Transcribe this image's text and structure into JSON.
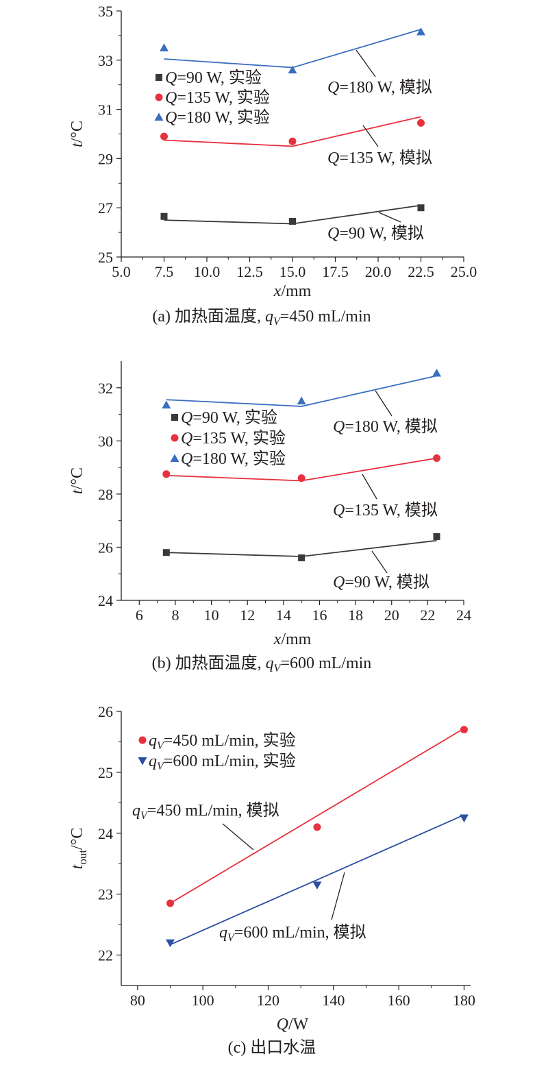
{
  "chart_data": [
    {
      "type": "line",
      "caption_parts": {
        "prefix": "(a) 加热面温度, ",
        "var": "q",
        "sub": "V",
        "suffix": "=450 mL/min"
      },
      "xlabel_parts": {
        "var": "x",
        "rest": "/mm"
      },
      "ylabel_parts": {
        "var": "t",
        "rest": "/°C"
      },
      "xlim": [
        5,
        25
      ],
      "ylim": [
        25,
        35
      ],
      "xticks": [
        5,
        7.5,
        10,
        12.5,
        15,
        17.5,
        20,
        22.5,
        25
      ],
      "xtick_labels": [
        "5.0",
        "7.5",
        "10.0",
        "12.5",
        "15.0",
        "17.5",
        "20.0",
        "22.5",
        "25.0"
      ],
      "yticks": [
        25,
        27,
        29,
        31,
        33,
        35
      ],
      "ytick_labels": [
        "25",
        "27",
        "29",
        "31",
        "33",
        "35"
      ],
      "grid": false,
      "legend_position": "upper-left",
      "experiment_series": [
        {
          "label_var": "Q",
          "label_rest": "=90 W, 实验",
          "marker": "square",
          "color": "#3a3a3a",
          "x": [
            7.5,
            15,
            22.5
          ],
          "y": [
            26.65,
            26.45,
            27.0
          ]
        },
        {
          "label_var": "Q",
          "label_rest": "=135 W, 实验",
          "marker": "circle",
          "color": "#e8313f",
          "x": [
            7.5,
            15,
            22.5
          ],
          "y": [
            29.9,
            29.7,
            30.45
          ]
        },
        {
          "label_var": "Q",
          "label_rest": "=180 W, 实验",
          "marker": "triangle-up",
          "color": "#3a6fc0",
          "x": [
            7.5,
            15,
            22.5
          ],
          "y": [
            33.5,
            32.6,
            34.15
          ]
        }
      ],
      "simulation_series": [
        {
          "label_var": "Q",
          "label_rest": "=90 W, 模拟",
          "color": "#3a3a3a",
          "x": [
            7.5,
            15,
            22.5
          ],
          "y": [
            26.5,
            26.35,
            27.1
          ]
        },
        {
          "label_var": "Q",
          "label_rest": "=135 W, 模拟",
          "color": "#e8313f",
          "x": [
            7.5,
            15,
            22.5
          ],
          "y": [
            29.75,
            29.5,
            30.7
          ]
        },
        {
          "label_var": "Q",
          "label_rest": "=180 W, 模拟",
          "color": "#3a6fc0",
          "x": [
            7.5,
            15,
            22.5
          ],
          "y": [
            33.05,
            32.7,
            34.25
          ]
        }
      ]
    },
    {
      "type": "line",
      "caption_parts": {
        "prefix": "(b) 加热面温度, ",
        "var": "q",
        "sub": "V",
        "suffix": "=600 mL/min"
      },
      "xlabel_parts": {
        "var": "x",
        "rest": "/mm"
      },
      "ylabel_parts": {
        "var": "t",
        "rest": "/°C"
      },
      "xlim": [
        5,
        24
      ],
      "ylim": [
        24,
        33
      ],
      "xticks": [
        6,
        8,
        10,
        12,
        14,
        16,
        18,
        20,
        22,
        24
      ],
      "xtick_labels": [
        "6",
        "8",
        "10",
        "12",
        "14",
        "16",
        "18",
        "20",
        "22",
        "24"
      ],
      "yticks": [
        24,
        26,
        28,
        30,
        32
      ],
      "ytick_labels": [
        "24",
        "26",
        "28",
        "30",
        "32"
      ],
      "grid": false,
      "legend_position": "upper-left",
      "experiment_series": [
        {
          "label_var": "Q",
          "label_rest": "=90 W, 实验",
          "marker": "square",
          "color": "#3a3a3a",
          "x": [
            7.5,
            15,
            22.5
          ],
          "y": [
            25.8,
            25.6,
            26.4
          ]
        },
        {
          "label_var": "Q",
          "label_rest": "=135 W, 实验",
          "marker": "circle",
          "color": "#e8313f",
          "x": [
            7.5,
            15,
            22.5
          ],
          "y": [
            28.75,
            28.6,
            29.35
          ]
        },
        {
          "label_var": "Q",
          "label_rest": "=180 W, 实验",
          "marker": "triangle-up",
          "color": "#3a6fc0",
          "x": [
            7.5,
            15,
            22.5
          ],
          "y": [
            31.35,
            31.5,
            32.55
          ]
        }
      ],
      "simulation_series": [
        {
          "label_var": "Q",
          "label_rest": "=90 W, 模拟",
          "color": "#3a3a3a",
          "x": [
            7.5,
            15,
            22.5
          ],
          "y": [
            25.8,
            25.65,
            26.25
          ]
        },
        {
          "label_var": "Q",
          "label_rest": "=135 W, 模拟",
          "color": "#e8313f",
          "x": [
            7.5,
            15,
            22.5
          ],
          "y": [
            28.7,
            28.5,
            29.35
          ]
        },
        {
          "label_var": "Q",
          "label_rest": "=180 W, 模拟",
          "color": "#3a6fc0",
          "x": [
            7.5,
            15,
            22.5
          ],
          "y": [
            31.55,
            31.3,
            32.45
          ]
        }
      ]
    },
    {
      "type": "line",
      "caption_parts": {
        "prefix": "(c) 出口水温",
        "var": "",
        "sub": "",
        "suffix": ""
      },
      "xlabel_parts": {
        "var": "Q",
        "rest": "/W"
      },
      "ylabel_parts": {
        "var": "t",
        "sub": "out",
        "rest": "/°C"
      },
      "xlim": [
        75,
        182
      ],
      "ylim": [
        21.5,
        26
      ],
      "xticks": [
        80,
        100,
        120,
        140,
        160,
        180
      ],
      "xtick_labels": [
        "80",
        "100",
        "120",
        "140",
        "160",
        "180"
      ],
      "yticks": [
        22,
        23,
        24,
        25,
        26
      ],
      "ytick_labels": [
        "22",
        "23",
        "24",
        "25",
        "26"
      ],
      "grid": false,
      "legend_position": "upper-left",
      "experiment_series": [
        {
          "label_var": "q",
          "label_sub": "V",
          "label_rest": "=450 mL/min, 实验",
          "marker": "circle",
          "color": "#e8313f",
          "x": [
            90,
            135,
            180
          ],
          "y": [
            22.85,
            24.1,
            25.7
          ]
        },
        {
          "label_var": "q",
          "label_sub": "V",
          "label_rest": "=600 mL/min, 实验",
          "marker": "triangle-down",
          "color": "#2c4fa0",
          "x": [
            90,
            135,
            180
          ],
          "y": [
            22.2,
            23.15,
            24.25
          ]
        }
      ],
      "simulation_series": [
        {
          "label_var": "q",
          "label_sub": "V",
          "label_rest": "=450 mL/min, 模拟",
          "color": "#e8313f",
          "x": [
            90,
            180
          ],
          "y": [
            22.85,
            25.72
          ]
        },
        {
          "label_var": "q",
          "label_sub": "V",
          "label_rest": "=600 mL/min, 模拟",
          "color": "#2c4fa0",
          "x": [
            90,
            180
          ],
          "y": [
            22.17,
            24.3
          ]
        }
      ]
    }
  ]
}
